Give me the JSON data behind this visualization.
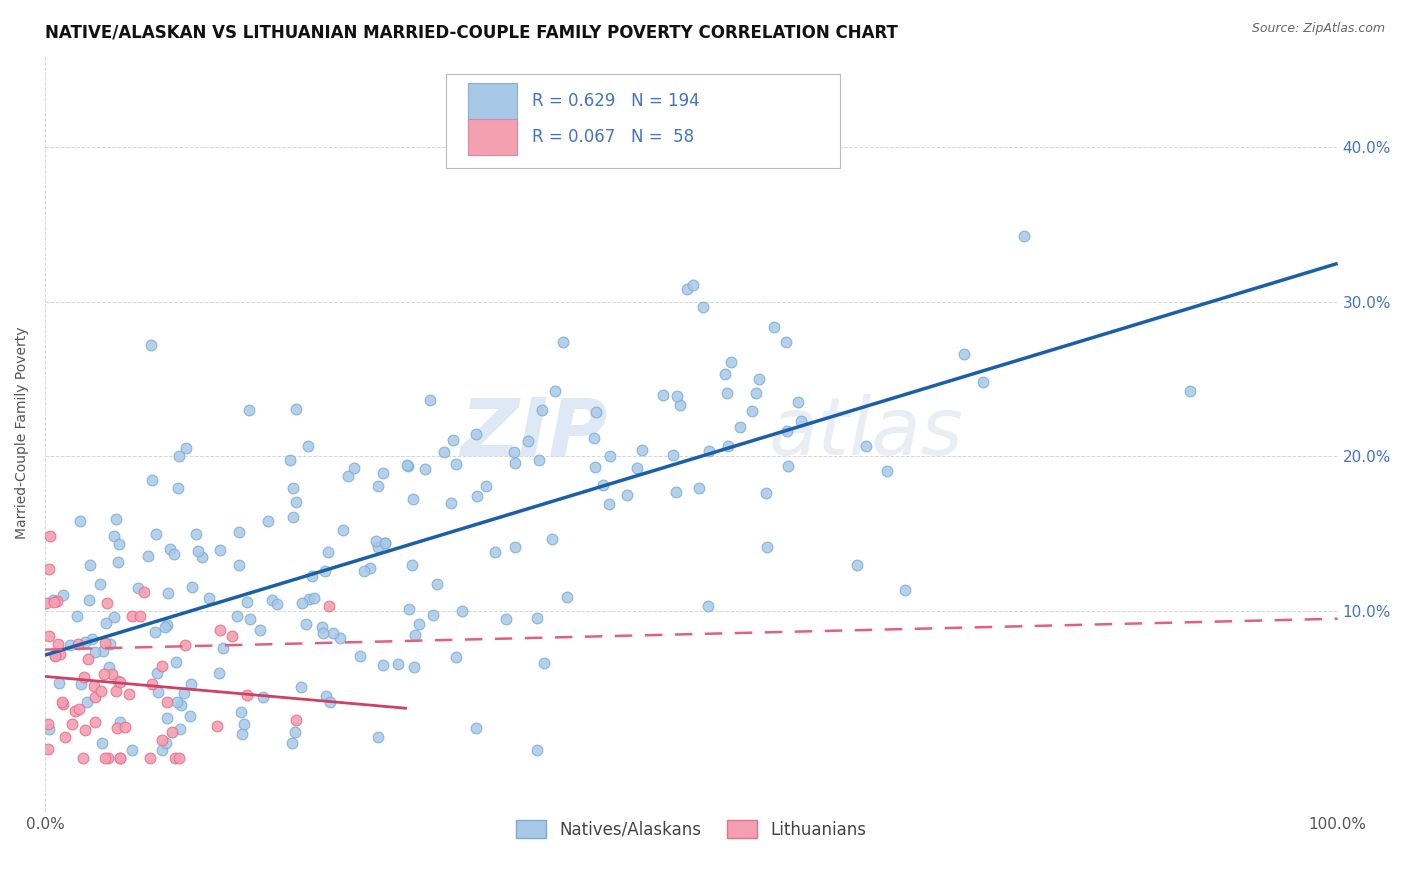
{
  "title": "NATIVE/ALASKAN VS LITHUANIAN MARRIED-COUPLE FAMILY POVERTY CORRELATION CHART",
  "source": "Source: ZipAtlas.com",
  "ylabel": "Married-Couple Family Poverty",
  "legend_labels": [
    "Natives/Alaskans",
    "Lithuanians"
  ],
  "watermark_zip": "ZIP",
  "watermark_atlas": "atlas",
  "blue_scatter_color": "#a8c8e8",
  "blue_scatter_edge": "#7aadd4",
  "pink_scatter_color": "#f4a0b0",
  "pink_scatter_edge": "#e87090",
  "blue_line_color": "#1a5fa8",
  "pink_solid_line_color": "#d04060",
  "pink_dash_line_color": "#e06080",
  "legend_box_color_blue": "#a8c8e8",
  "legend_box_color_pink": "#f4a0b0",
  "legend_text_color": "#4472c4",
  "R_blue": 0.629,
  "N_blue": 194,
  "R_pink": 0.067,
  "N_pink": 58,
  "title_fontsize": 12,
  "axis_label_fontsize": 10,
  "tick_fontsize": 11,
  "background_color": "#ffffff",
  "grid_color": "#cccccc",
  "xlim": [
    0.0,
    1.0
  ],
  "ylim": [
    -0.03,
    0.46
  ]
}
